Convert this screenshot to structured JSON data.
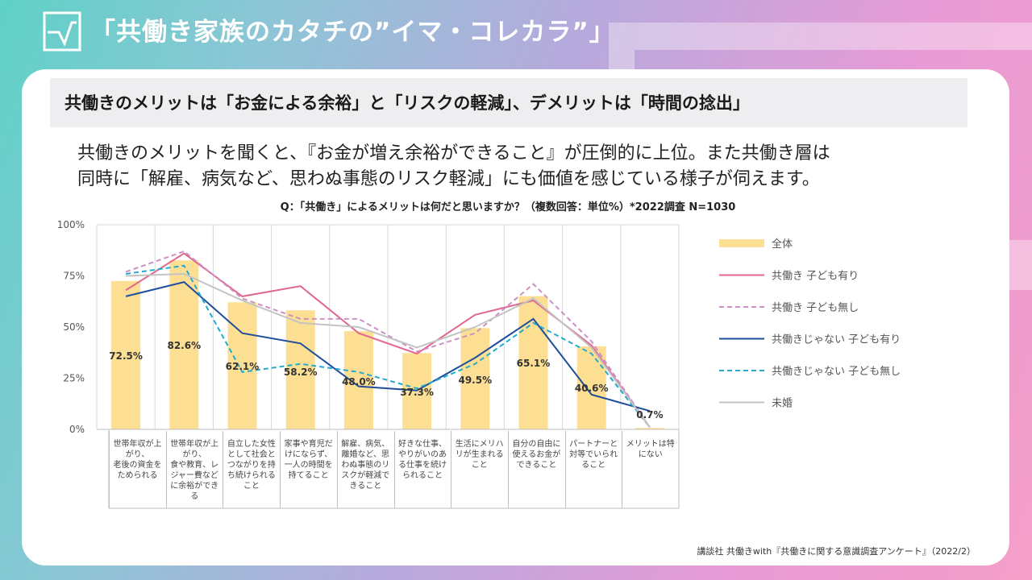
{
  "header": {
    "title": "「共働き家族のカタチの”イマ・コレカラ”」"
  },
  "subtitle": "共働きのメリットは「お金による余裕」と「リスクの軽減」、デメリットは「時間の捻出」",
  "body_lines": [
    "共働きのメリットを聞くと、『お金が増え余裕ができること』が圧倒的に上位。また共働き層は",
    "同時に「解雇、病気など、思わぬ事態のリスク軽減」にも価値を感じている様子が伺えます。"
  ],
  "question": "Q：「共働き」によるメリットは何だと思いますか？（複数回答：単位%）*2022調査 N=1030",
  "source": "講談社 共働きwith『共働きに関する意識調査アンケート』（2022/2）",
  "colors": {
    "bar": "#fddf94",
    "pink": "#e2668d",
    "pink_dash": "#cc90c4",
    "navy": "#1f4e9c",
    "cyan_dash": "#22aacc",
    "grey": "#c3c3c3"
  },
  "chart_data": {
    "type": "bar",
    "ylim": [
      0,
      100
    ],
    "yticks": [
      "0%",
      "25%",
      "50%",
      "75%",
      "100%"
    ],
    "categories": [
      "世帯年収が上がり、老後の資金をためられる",
      "世帯年収が上がり、食や教育、レジャー費などに余裕ができる",
      "自立した女性として社会とつながりを持ち続けられること",
      "家事や育児だけにならず、一人の時間を持てること",
      "解雇、病気、離婚など、思わぬ事態のリスクが軽減できること",
      "好きな仕事、やりがいのある仕事を続けられること",
      "生活にメリハリが生まれること",
      "自分の自由に使えるお金ができること",
      "パートナーと対等でいられること",
      "メリットは特にない"
    ],
    "bar_series": {
      "name": "全体",
      "values": [
        72.5,
        82.6,
        62.1,
        58.2,
        48.0,
        37.3,
        49.5,
        65.1,
        40.6,
        0.7
      ],
      "labels": [
        "72.5%",
        "82.6%",
        "62.1%",
        "58.2%",
        "48.0%",
        "37.3%",
        "49.5%",
        "65.1%",
        "40.6%",
        "0.7%"
      ]
    },
    "series": [
      {
        "name": "共働き 子ども有り",
        "style": "solid",
        "color": "#e2668d",
        "values": [
          68,
          86,
          65,
          70,
          47,
          37,
          56,
          63,
          41,
          1
        ]
      },
      {
        "name": "共働き 子ども無し",
        "style": "dashed",
        "color": "#cc90c4",
        "values": [
          77,
          87,
          64,
          54,
          54,
          38,
          47,
          71,
          43,
          1
        ]
      },
      {
        "name": "共働きじゃない 子ども有り",
        "style": "solid",
        "color": "#1f4e9c",
        "values": [
          65,
          72,
          47,
          42,
          21,
          19,
          35,
          54,
          17,
          9
        ]
      },
      {
        "name": "共働きじゃない 子ども無し",
        "style": "dashed",
        "color": "#22aacc",
        "values": [
          76,
          80,
          28,
          32,
          28,
          20,
          32,
          52,
          37,
          1
        ]
      },
      {
        "name": "未婚",
        "style": "solid",
        "color": "#c3c3c3",
        "values": [
          75,
          76,
          63,
          52,
          50,
          40,
          50,
          64,
          40,
          1
        ]
      }
    ],
    "category_display": [
      [
        "世帯年収が上",
        "がり、",
        "老後の資金を",
        "ためられる"
      ],
      [
        "世帯年収が上",
        "がり、",
        "食や教育、レ",
        "ジャー費など",
        "に余裕ができ",
        "る"
      ],
      [
        "自立した女性",
        "として社会と",
        "つながりを持",
        "ち続けられる",
        "こと"
      ],
      [
        "家事や育児だ",
        "けにならず、",
        "一人の時間を",
        "持てること"
      ],
      [
        "解雇、病気、",
        "離婚など、思",
        "わぬ事態のリ",
        "スクが軽減で",
        "きること"
      ],
      [
        "好きな仕事、",
        "やりがいのあ",
        "る仕事を続け",
        "られること"
      ],
      [
        "生活にメリハ",
        "リが生まれる",
        "こと"
      ],
      [
        "自分の自由に",
        "使えるお金が",
        "できること"
      ],
      [
        "パートナーと",
        "対等でいられ",
        "ること"
      ],
      [
        "メリットは特",
        "にない"
      ]
    ]
  }
}
